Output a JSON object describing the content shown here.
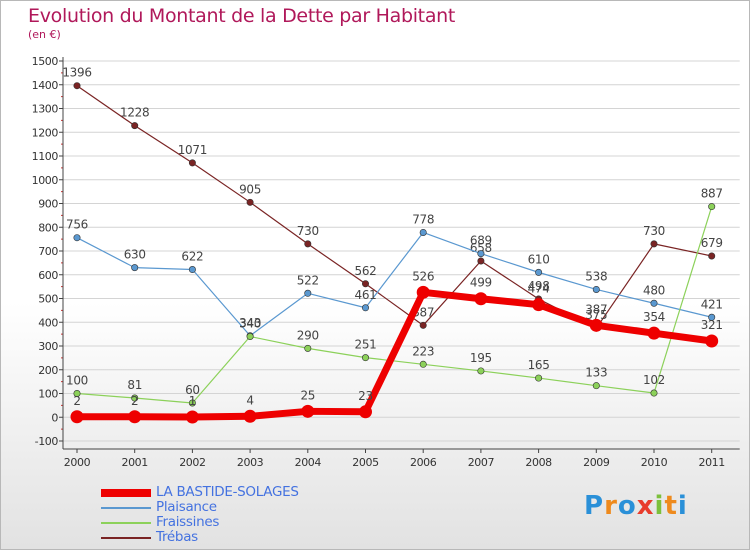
{
  "title": "Evolution du Montant de la Dette par Habitant",
  "subtitle": "(en €)",
  "colors": {
    "title": "#b0185a",
    "legend_text": "#4472e0",
    "axis": "#444444",
    "grid": "#d4d4d4"
  },
  "logo": {
    "letters": [
      {
        "ch": "P",
        "color": "#2a90d8"
      },
      {
        "ch": "r",
        "color": "#ee8a1d"
      },
      {
        "ch": "o",
        "color": "#2a90d8"
      },
      {
        "ch": "x",
        "color": "#e83c2c"
      },
      {
        "ch": "i",
        "color": "#7cc03c"
      },
      {
        "ch": "t",
        "color": "#ee8a1d"
      },
      {
        "ch": "i",
        "color": "#2a90d8"
      }
    ]
  },
  "chart_data": {
    "type": "line",
    "title": "Evolution du Montant de la Dette par Habitant",
    "subtitle": "(en €)",
    "xlabel": "",
    "ylabel": "",
    "x": [
      "2000",
      "2001",
      "2002",
      "2003",
      "2004",
      "2005",
      "2006",
      "2007",
      "2008",
      "2009",
      "2010",
      "2011"
    ],
    "ylim": [
      -100,
      1500
    ],
    "yticks": [
      -100,
      0,
      100,
      200,
      300,
      400,
      500,
      600,
      700,
      800,
      900,
      1000,
      1100,
      1200,
      1300,
      1400,
      1500
    ],
    "grid": "horizontal",
    "legend_position": "bottom-left",
    "series": [
      {
        "name": "Trébas",
        "color": "#7a2424",
        "values": [
          1396,
          1228,
          1071,
          905,
          730,
          562,
          387,
          658,
          498,
          375,
          730,
          679
        ],
        "labels": [
          "1396",
          "1228",
          "1071",
          "905",
          "730",
          "562",
          "387",
          "658",
          "498",
          "375",
          "730",
          "679"
        ]
      },
      {
        "name": "Plaisance",
        "color": "#5a98d0",
        "values": [
          756,
          630,
          622,
          343,
          522,
          461,
          778,
          689,
          610,
          538,
          480,
          421
        ],
        "labels": [
          "756",
          "630",
          "622",
          "343",
          "522",
          "461",
          "778",
          "689",
          "610",
          "538",
          "480",
          "421"
        ]
      },
      {
        "name": "Fraissines",
        "color": "#8cd15a",
        "values": [
          100,
          81,
          60,
          340,
          290,
          251,
          223,
          195,
          165,
          133,
          102,
          887
        ],
        "labels": [
          "100",
          "81",
          "60",
          "340",
          "290",
          "251",
          "223",
          "195",
          "165",
          "133",
          "102",
          "887"
        ]
      },
      {
        "name": "LA BASTIDE-SOLAGES",
        "color": "#ee0000",
        "values": [
          2,
          2,
          1,
          4,
          25,
          23,
          526,
          499,
          474,
          387,
          354,
          321
        ],
        "labels": [
          "2",
          "2",
          "1",
          "4",
          "25",
          "23",
          "526",
          "499",
          "474",
          "387",
          "354",
          "321"
        ]
      }
    ],
    "legend_order": [
      "LA BASTIDE-SOLAGES",
      "Plaisance",
      "Fraissines",
      "Trébas"
    ]
  }
}
